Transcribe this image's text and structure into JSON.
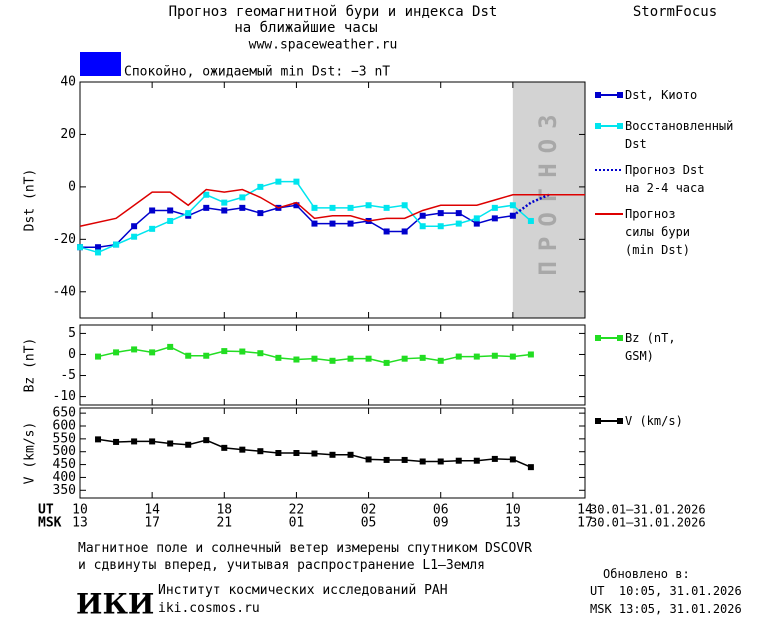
{
  "header": {
    "title": "Прогноз геомагнитной бури и индекса Dst",
    "subtitle": "на ближайшие часы",
    "url": "www.spaceweather.ru",
    "brand": "StormFocus",
    "status": "Спокойно, ожидаемый min Dst: −3 nT",
    "status_color": "#0000ff"
  },
  "chart_data": [
    {
      "type": "line",
      "ylabel": "Dst (nT)",
      "xlim": [
        0,
        28
      ],
      "ylim": [
        -50,
        40
      ],
      "yticks": [
        40,
        20,
        0,
        -20,
        -40
      ],
      "grid": false,
      "legend": "right",
      "forecast_zone": {
        "xlim": [
          24,
          28
        ],
        "label": "ПРОГНОЗ",
        "color": "#d3d3d3"
      },
      "series": [
        {
          "name": "Dst, Киото",
          "color": "#0000cc",
          "marker": "square",
          "x": [
            0,
            1,
            2,
            3,
            4,
            5,
            6,
            7,
            8,
            9,
            10,
            11,
            12,
            13,
            14,
            15,
            16,
            17,
            18,
            19,
            20,
            21,
            22,
            23,
            24
          ],
          "values": [
            -23,
            -23,
            -22,
            -15,
            -9,
            -9,
            -11,
            -8,
            -9,
            -8,
            -10,
            -8,
            -7,
            -14,
            -14,
            -14,
            -13,
            -17,
            -17,
            -11,
            -10,
            -10,
            -14,
            -12,
            -11
          ]
        },
        {
          "name": "Восстановленный Dst",
          "color": "#00e5ee",
          "marker": "square",
          "x": [
            0,
            1,
            2,
            3,
            4,
            5,
            6,
            7,
            8,
            9,
            10,
            11,
            12,
            13,
            14,
            15,
            16,
            17,
            18,
            19,
            20,
            21,
            22,
            23,
            24,
            25
          ],
          "values": [
            -23,
            -25,
            -22,
            -19,
            -16,
            -13,
            -10,
            -3,
            -6,
            -4,
            0,
            2,
            2,
            -8,
            -8,
            -8,
            -7,
            -8,
            -7,
            -15,
            -15,
            -14,
            -12,
            -8,
            -7,
            -13
          ]
        },
        {
          "name": "Прогноз Dst на 2-4 часа",
          "color": "#0000cc",
          "dash": true,
          "x": [
            24,
            25,
            26
          ],
          "values": [
            -11,
            -6,
            -3
          ]
        },
        {
          "name": "Прогноз силы бури (min Dst)",
          "color": "#dd0000",
          "x": [
            0,
            2,
            4,
            5,
            6,
            7,
            8,
            9,
            10,
            11,
            12,
            13,
            14,
            15,
            16,
            17,
            18,
            19,
            20,
            21,
            22,
            23,
            24,
            28
          ],
          "values": [
            -15,
            -12,
            -2,
            -2,
            -7,
            -1,
            -2,
            -1,
            -4,
            -8,
            -6,
            -12,
            -11,
            -11,
            -13,
            -12,
            -12,
            -9,
            -7,
            -7,
            -7,
            -5,
            -3,
            -3
          ]
        }
      ]
    },
    {
      "type": "line",
      "ylabel": "Bz (nT)",
      "xlim": [
        0,
        28
      ],
      "ylim": [
        -12,
        7
      ],
      "yticks": [
        5,
        0,
        -5,
        -10
      ],
      "grid": false,
      "legend": "right",
      "series": [
        {
          "name": "Bz (nT, GSM)",
          "color": "#22dd22",
          "marker": "square",
          "x": [
            1,
            2,
            3,
            4,
            5,
            6,
            7,
            8,
            9,
            10,
            11,
            12,
            13,
            14,
            15,
            16,
            17,
            18,
            19,
            20,
            21,
            22,
            23,
            24,
            25
          ],
          "values": [
            -0.5,
            0.5,
            1.2,
            0.5,
            1.8,
            -0.3,
            -0.3,
            0.8,
            0.7,
            0.3,
            -0.8,
            -1.2,
            -1,
            -1.5,
            -1,
            -1,
            -2,
            -1,
            -0.8,
            -1.5,
            -0.5,
            -0.5,
            -0.3,
            -0.5,
            0
          ]
        }
      ]
    },
    {
      "type": "line",
      "ylabel": "V (km/s)",
      "xlim": [
        0,
        28
      ],
      "ylim": [
        320,
        670
      ],
      "yticks": [
        650,
        600,
        550,
        500,
        450,
        400,
        350
      ],
      "grid": false,
      "legend": "right",
      "xticks": [
        {
          "value": 0,
          "label": "10"
        },
        {
          "value": 4,
          "label": "14"
        },
        {
          "value": 8,
          "label": "18"
        },
        {
          "value": 12,
          "label": "22"
        },
        {
          "value": 16,
          "label": "02"
        },
        {
          "value": 20,
          "label": "06"
        },
        {
          "value": 24,
          "label": "10"
        },
        {
          "value": 28,
          "label": "14"
        }
      ],
      "xticks_msk": [
        {
          "value": 0,
          "label": "13"
        },
        {
          "value": 4,
          "label": "17"
        },
        {
          "value": 8,
          "label": "21"
        },
        {
          "value": 12,
          "label": "01"
        },
        {
          "value": 16,
          "label": "05"
        },
        {
          "value": 20,
          "label": "09"
        },
        {
          "value": 24,
          "label": "13"
        },
        {
          "value": 28,
          "label": "17"
        }
      ],
      "x_row_label": "UT",
      "x_row_label_msk": "MSK",
      "x_range_label": "30.01–31.01.2026",
      "x_range_label_msk": "30.01–31.01.2026",
      "series": [
        {
          "name": "V (km/s)",
          "color": "#000000",
          "marker": "square",
          "x": [
            1,
            2,
            3,
            4,
            5,
            6,
            7,
            8,
            9,
            10,
            11,
            12,
            13,
            14,
            15,
            16,
            17,
            18,
            19,
            20,
            21,
            22,
            23,
            24,
            25
          ],
          "values": [
            548,
            538,
            540,
            540,
            532,
            527,
            545,
            515,
            508,
            502,
            495,
            495,
            493,
            488,
            488,
            470,
            468,
            468,
            462,
            462,
            465,
            465,
            472,
            470,
            440
          ]
        }
      ]
    }
  ],
  "footer": {
    "note1": "Магнитное поле и солнечный ветер измерены спутником DSCOVR",
    "note2": "и сдвинуты вперед, учитывая распространение L1–Земля",
    "logo": "ИКИ",
    "institute": "Институт космических исследований РАН",
    "site": "iki.cosmos.ru",
    "updated": "Обновлено в:",
    "updated_ut": "UT  10:05, 31.01.2026",
    "updated_msk": "MSK 13:05, 31.01.2026"
  }
}
